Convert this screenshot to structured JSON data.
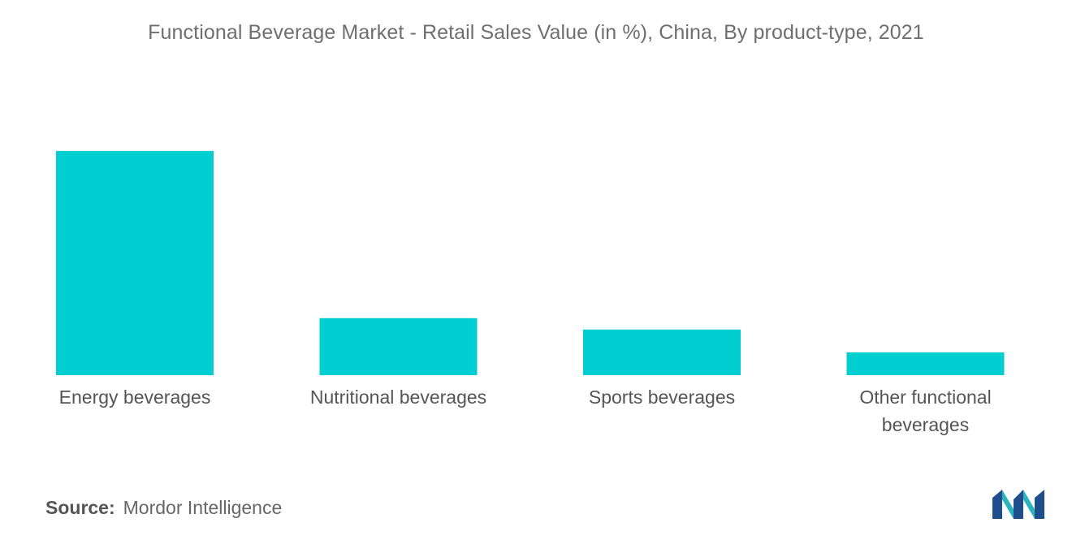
{
  "chart_data": {
    "type": "bar",
    "title": "Functional Beverage Market - Retail Sales Value (in %), China, By product-type, 2021",
    "categories": [
      [
        "Energy beverages"
      ],
      [
        "Nutritional beverages"
      ],
      [
        "Sports beverages"
      ],
      [
        "Other functional",
        "beverages"
      ]
    ],
    "values": [
      59,
      15,
      12,
      6
    ],
    "ylim": [
      0,
      100
    ],
    "xlabel": "",
    "ylabel": "",
    "grid": false,
    "legend": "none",
    "bar_color": "#00ced1"
  },
  "footer": {
    "source_key": "Source:",
    "source_value": "Mordor Intelligence"
  },
  "logo": {
    "icon": "mordor-intelligence-logo-icon",
    "colors": [
      "#1e4f8c",
      "#2bb3c0"
    ]
  }
}
